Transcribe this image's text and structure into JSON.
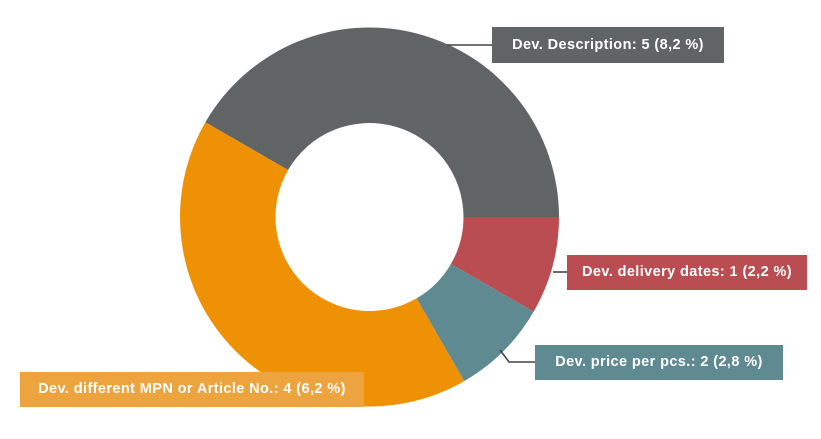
{
  "chart_data": {
    "type": "pie",
    "subtype": "donut",
    "title": "",
    "legend": "none (callout labels)",
    "slices": [
      {
        "name": "Dev. Description",
        "value": 5,
        "percent_label": "8,2 %",
        "label": "Dev. Description: 5 (8,2 %)",
        "color": "#606465",
        "start_deg": 210,
        "end_deg": 360
      },
      {
        "name": "Dev. delivery dates",
        "value": 1,
        "percent_label": "2,2 %",
        "label": "Dev. delivery dates: 1 (2,2 %)",
        "color": "#B94D52",
        "start_deg": 0,
        "end_deg": 30
      },
      {
        "name": "Dev. price per pcs.",
        "value": 2,
        "percent_label": "2,8 %",
        "label": "Dev. price per pcs.: 2 (2,8 %)",
        "color": "#5F8A92",
        "start_deg": 30,
        "end_deg": 60
      },
      {
        "name": "Dev. different MPN or Article No.",
        "value": 4,
        "percent_label": "6,2 %",
        "label": "Dev. different MPN or Article No.: 4 (6,2 %)",
        "color": "#EF9104",
        "label_color": "#EDA43E",
        "start_deg": 60,
        "end_deg": 210
      }
    ]
  },
  "labels": {
    "description": "Dev. Description: 5 (8,2 %)",
    "delivery": "Dev. delivery dates: 1 (2,2 %)",
    "price": "Dev. price per pcs.: 2 (2,8 %)",
    "mpn": "Dev. different MPN or Article No.: 4 (6,2 %)"
  },
  "colors": {
    "description": "#606465",
    "delivery": "#B94D52",
    "price": "#5F8A92",
    "mpn": "#EF9104",
    "mpn_label": "#EDA43E",
    "leader": "#444444"
  }
}
